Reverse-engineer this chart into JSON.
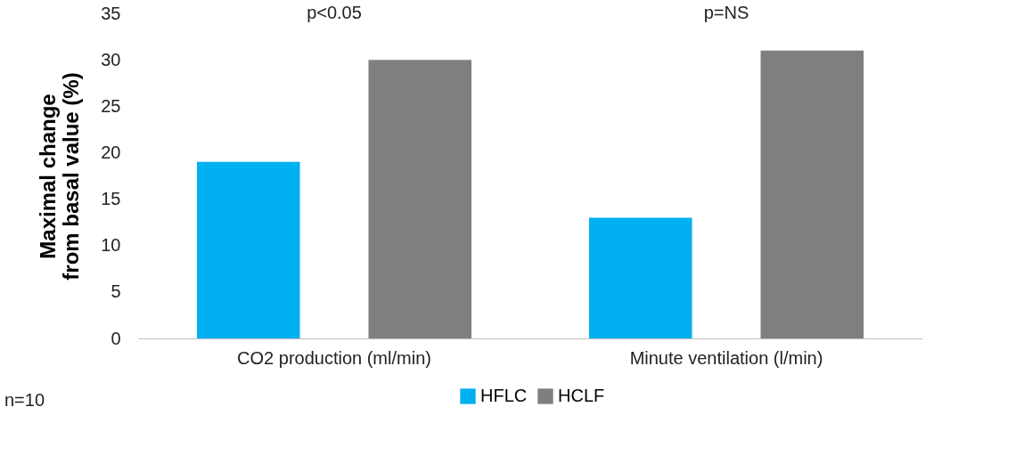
{
  "chart_data": {
    "type": "bar",
    "ylabel": "Maximal change\nfrom basal value (%)",
    "categories": [
      "CO2 production (ml/min)",
      "Minute ventilation (l/min)"
    ],
    "series": [
      {
        "name": "HFLC",
        "color": "#00b0f0",
        "values": [
          19,
          13
        ]
      },
      {
        "name": "HCLF",
        "color": "#7f7f7f",
        "values": [
          30,
          31
        ]
      }
    ],
    "ylim": [
      0,
      35
    ],
    "yticks": [
      0,
      5,
      10,
      15,
      20,
      25,
      30,
      35
    ],
    "grid": false,
    "legend": "bottom",
    "annotations": [
      "p<0.05",
      "p=NS",
      "n=10"
    ]
  }
}
